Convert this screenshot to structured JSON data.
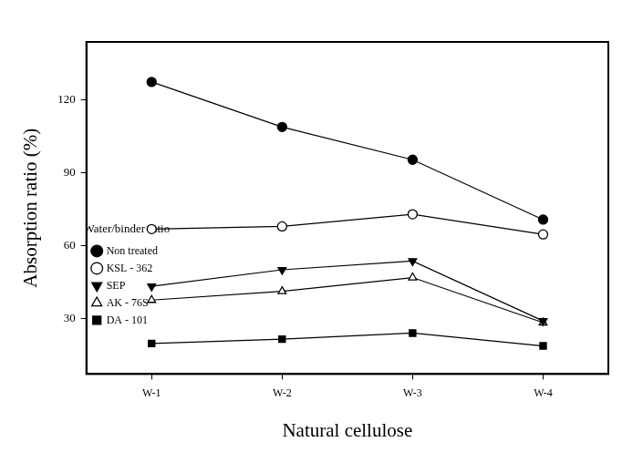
{
  "chart_data": {
    "type": "line",
    "x_label": "Natural cellulose",
    "y_label": "Absorption ratio (%)",
    "legend_title": "Water/binder ratio",
    "legend": "upper right",
    "grid": false,
    "categories": [
      "W-1",
      "W-2",
      "W-3",
      "W-4"
    ],
    "ylim": [
      7,
      144
    ],
    "yticks": [
      30,
      60,
      90,
      120
    ],
    "series": [
      {
        "name": "Non treated",
        "color": "#000000",
        "marker": "circle",
        "line_style": "solid",
        "values": [
          127.5,
          108.9,
          95.4,
          70.7
        ]
      },
      {
        "name": "KSL - 362",
        "color": "#000000",
        "marker": "circle_open",
        "line_style": "solid",
        "values": [
          66.8,
          67.9,
          72.9,
          64.6
        ]
      },
      {
        "name": "SEP",
        "color": "#000000",
        "marker": "triangle_down",
        "line_style": "solid",
        "values": [
          43.2,
          50.0,
          53.6,
          28.9
        ]
      },
      {
        "name": "AK - 76S",
        "color": "#000000",
        "marker": "triangle_open",
        "line_style": "solid",
        "values": [
          37.5,
          41.1,
          46.8,
          28.2
        ]
      },
      {
        "name": "DA - 101",
        "color": "#000000",
        "marker": "square",
        "line_style": "solid",
        "values": [
          19.6,
          21.4,
          23.9,
          18.6
        ]
      }
    ]
  }
}
